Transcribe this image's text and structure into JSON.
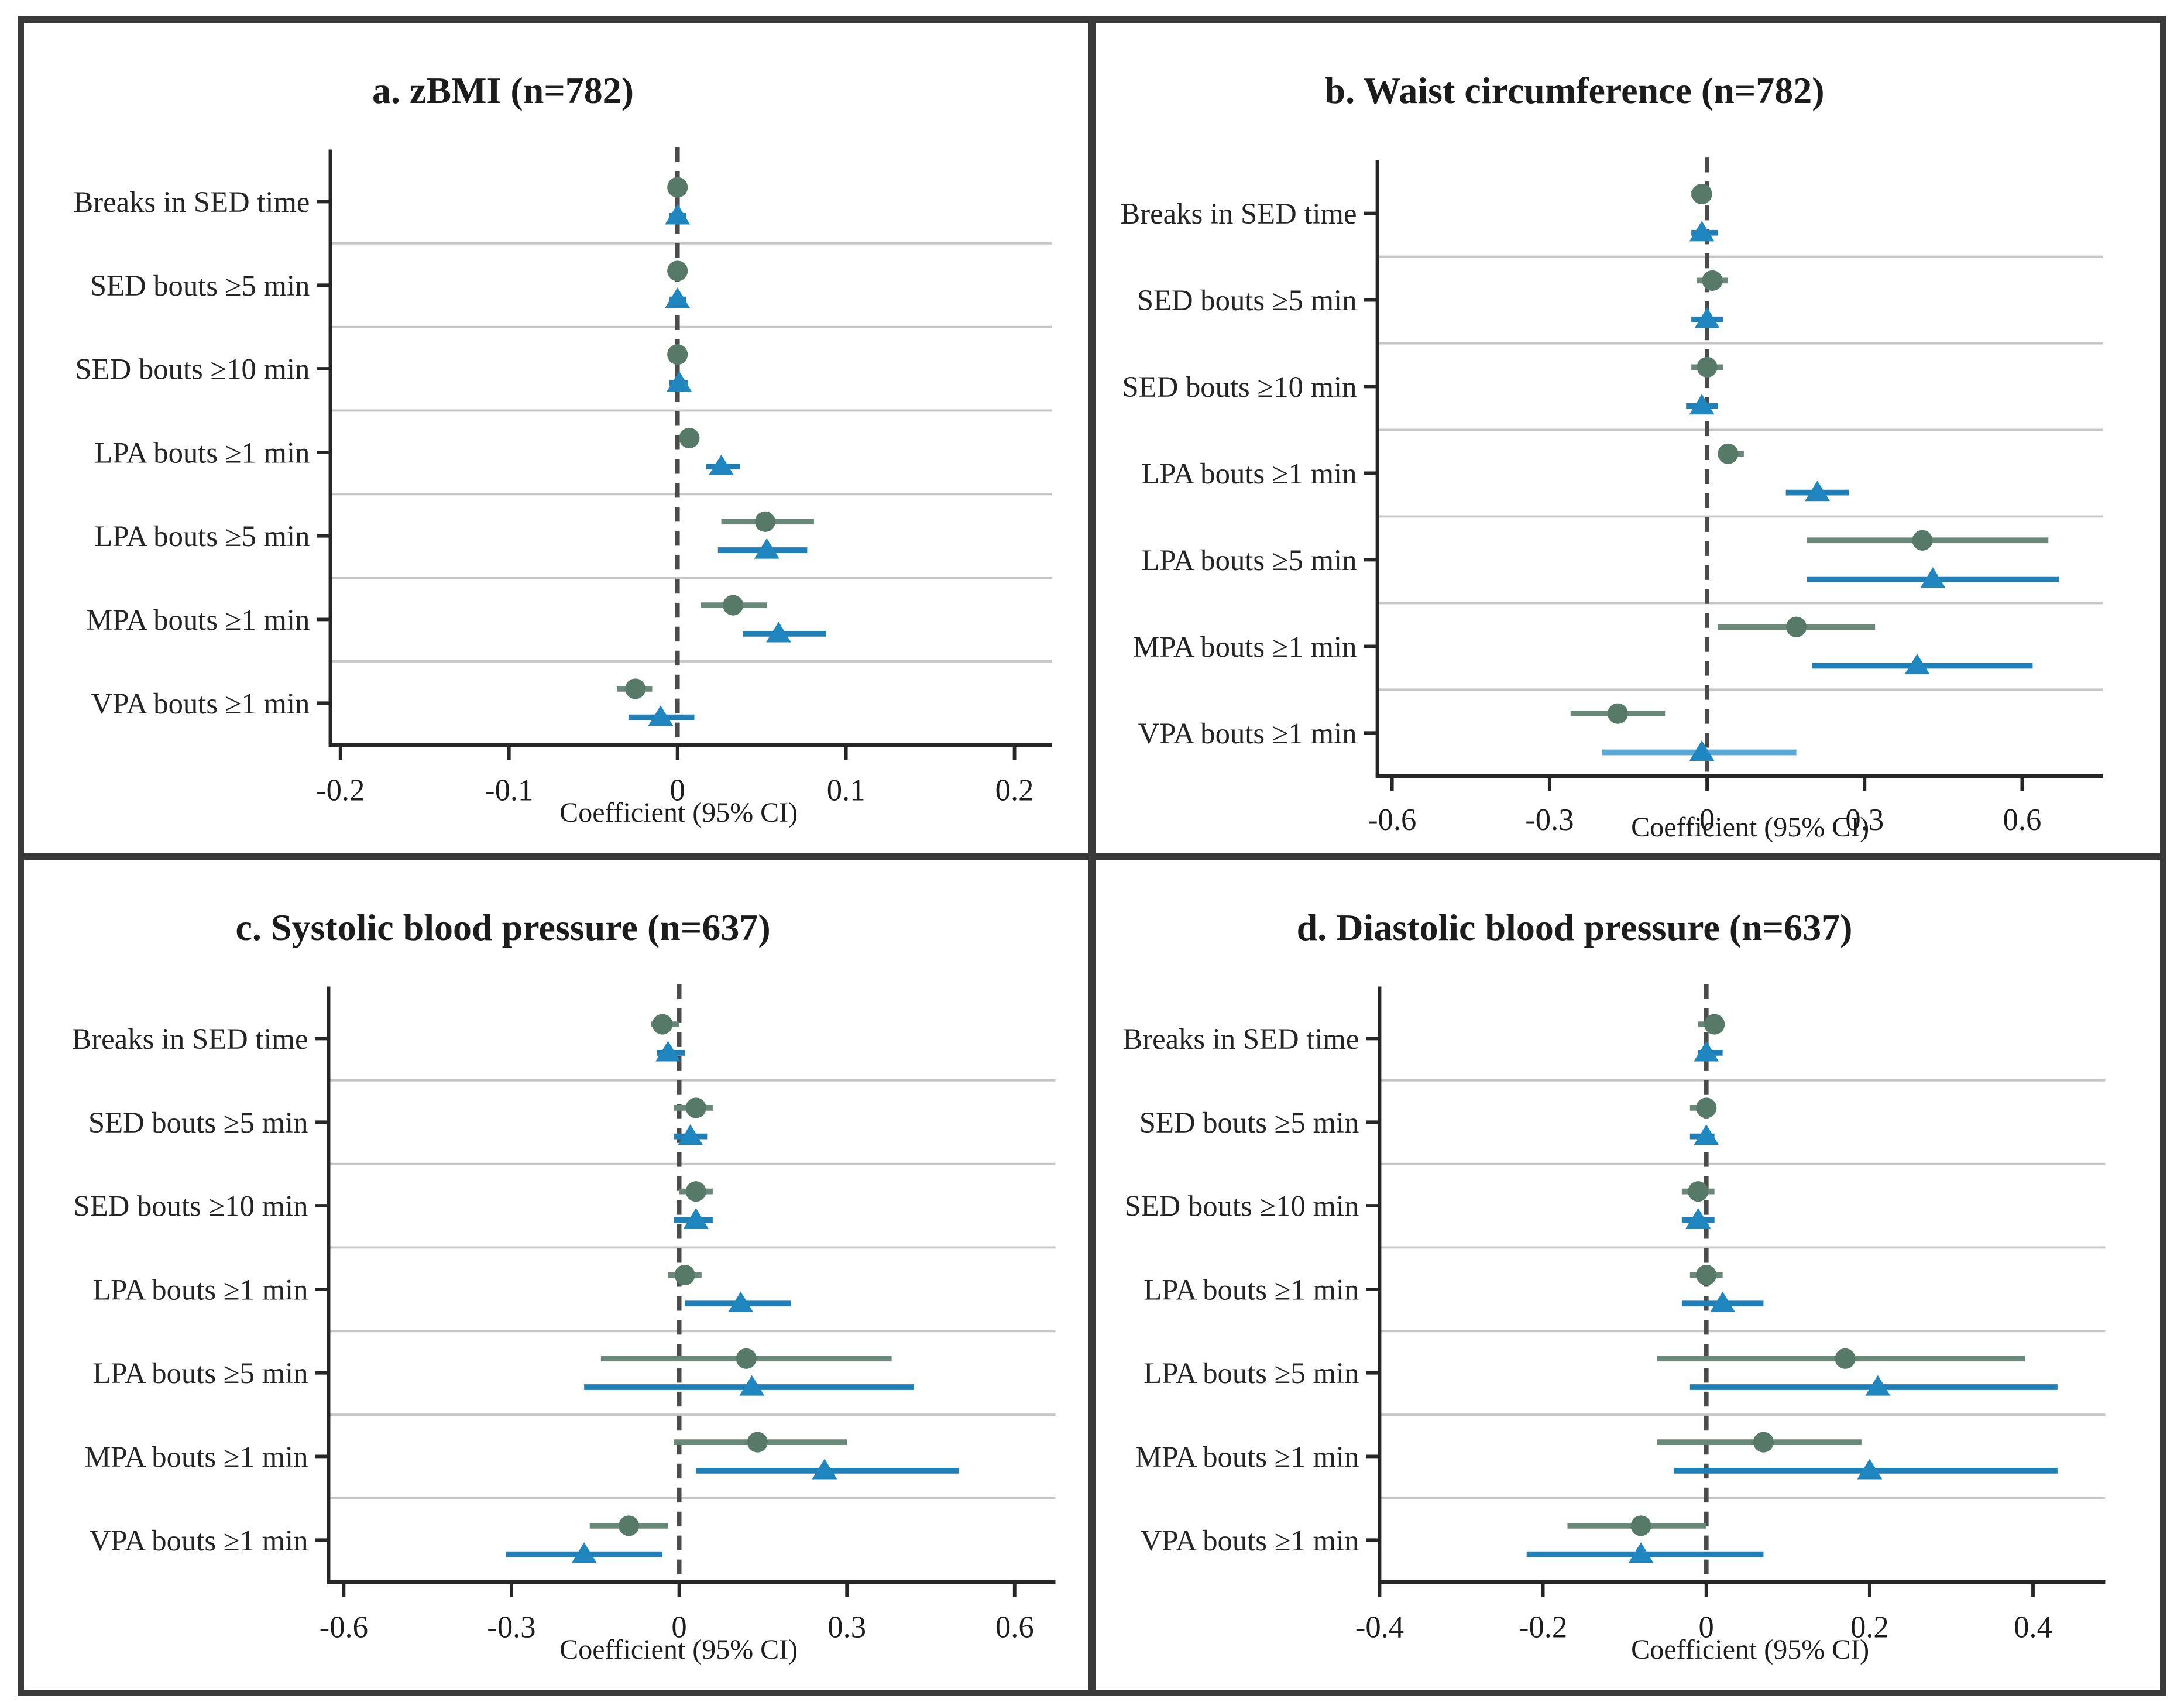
{
  "figure": {
    "frame_color": "#3a3a3a",
    "background": "#ffffff",
    "row_divider_color": "#c7c7c7",
    "axis_color": "#262626",
    "zero_line_color": "#4b4b4b",
    "text_color": "#1d1d1d"
  },
  "chart_data": {
    "type": "scatter",
    "subtype": "forest-plot-coefficients-95CI",
    "grid": "row-dividers-only",
    "legend": "none",
    "categories": [
      "Breaks in SED time",
      "SED bouts ≥5 min",
      "SED bouts ≥10 min",
      "LPA bouts ≥1 min",
      "LPA bouts ≥5 min",
      "MPA bouts ≥1 min",
      "VPA bouts ≥1 min"
    ],
    "series_meta": [
      {
        "name": "model-circle",
        "marker": "circle",
        "marker_color": "#567968",
        "line_color": "#6a8879"
      },
      {
        "name": "model-triangle",
        "marker": "triangle",
        "marker_color": "#1f86c0",
        "line_color": "#1f7fb6"
      }
    ],
    "panels": [
      {
        "id": "a",
        "title": "a. zBMI (n=782)",
        "xlabel": "Coefficient (95% CI)",
        "xlim": [
          -0.206,
          0.207
        ],
        "tick_values": [
          -0.2,
          -0.1,
          0,
          0.1,
          0.2
        ],
        "tick_labels": [
          "-0.2",
          "-0.1",
          "0",
          "0.1",
          "0.2"
        ],
        "series": [
          {
            "points": [
              {
                "est": 0.0,
                "lo": -0.005,
                "hi": 0.005
              },
              {
                "est": 0.0,
                "lo": -0.005,
                "hi": 0.005
              },
              {
                "est": 0.0,
                "lo": -0.005,
                "hi": 0.005
              },
              {
                "est": 0.007,
                "lo": 0.001,
                "hi": 0.013
              },
              {
                "est": 0.052,
                "lo": 0.026,
                "hi": 0.081
              },
              {
                "est": 0.033,
                "lo": 0.014,
                "hi": 0.053
              },
              {
                "est": -0.025,
                "lo": -0.036,
                "hi": -0.015
              }
            ]
          },
          {
            "points": [
              {
                "est": 0.0,
                "lo": -0.005,
                "hi": 0.005
              },
              {
                "est": 0.0,
                "lo": -0.005,
                "hi": 0.005
              },
              {
                "est": 0.001,
                "lo": -0.005,
                "hi": 0.006
              },
              {
                "est": 0.026,
                "lo": 0.017,
                "hi": 0.037
              },
              {
                "est": 0.053,
                "lo": 0.024,
                "hi": 0.077
              },
              {
                "est": 0.06,
                "lo": 0.039,
                "hi": 0.088
              },
              {
                "est": -0.01,
                "lo": -0.029,
                "hi": 0.01
              }
            ]
          }
        ]
      },
      {
        "id": "b",
        "title": "b. Waist circumference (n=782)",
        "xlabel": "Coefficient (95% CI)",
        "xlim": [
          -0.628,
          0.705
        ],
        "tick_values": [
          -0.6,
          -0.3,
          0,
          0.3,
          0.6
        ],
        "tick_labels": [
          "-0.6",
          "-0.3",
          "0",
          "0.3",
          "0.6"
        ],
        "series": [
          {
            "points": [
              {
                "est": -0.01,
                "lo": -0.03,
                "hi": 0.01
              },
              {
                "est": 0.01,
                "lo": -0.02,
                "hi": 0.04
              },
              {
                "est": 0.0,
                "lo": -0.03,
                "hi": 0.03
              },
              {
                "est": 0.04,
                "lo": 0.02,
                "hi": 0.07
              },
              {
                "est": 0.41,
                "lo": 0.19,
                "hi": 0.65
              },
              {
                "est": 0.17,
                "lo": 0.02,
                "hi": 0.32
              },
              {
                "est": -0.17,
                "lo": -0.26,
                "hi": -0.08
              }
            ]
          },
          {
            "points": [
              {
                "est": -0.01,
                "lo": -0.03,
                "hi": 0.02
              },
              {
                "est": 0.0,
                "lo": -0.03,
                "hi": 0.03
              },
              {
                "est": -0.01,
                "lo": -0.04,
                "hi": 0.02
              },
              {
                "est": 0.21,
                "lo": 0.15,
                "hi": 0.27
              },
              {
                "est": 0.43,
                "lo": 0.19,
                "hi": 0.67
              },
              {
                "est": 0.4,
                "lo": 0.2,
                "hi": 0.62
              },
              {
                "est": -0.01,
                "lo": -0.2,
                "hi": 0.17,
                "line_color": "#59a9d8"
              }
            ]
          }
        ]
      },
      {
        "id": "c",
        "title": "c. Systolic blood pressure (n=637)",
        "xlabel": "Coefficient (95% CI)",
        "xlim": [
          -0.627,
          0.627
        ],
        "tick_values": [
          -0.6,
          -0.3,
          0,
          0.3,
          0.6
        ],
        "tick_labels": [
          "-0.6",
          "-0.3",
          "0",
          "0.3",
          "0.6"
        ],
        "series": [
          {
            "points": [
              {
                "est": -0.03,
                "lo": -0.05,
                "hi": 0.0
              },
              {
                "est": 0.03,
                "lo": -0.01,
                "hi": 0.06
              },
              {
                "est": 0.03,
                "lo": 0.0,
                "hi": 0.06
              },
              {
                "est": 0.01,
                "lo": -0.02,
                "hi": 0.04
              },
              {
                "est": 0.12,
                "lo": -0.14,
                "hi": 0.38
              },
              {
                "est": 0.14,
                "lo": -0.01,
                "hi": 0.3
              },
              {
                "est": -0.09,
                "lo": -0.16,
                "hi": -0.02
              }
            ]
          },
          {
            "points": [
              {
                "est": -0.02,
                "lo": -0.04,
                "hi": 0.01
              },
              {
                "est": 0.02,
                "lo": -0.01,
                "hi": 0.05
              },
              {
                "est": 0.03,
                "lo": -0.01,
                "hi": 0.06
              },
              {
                "est": 0.11,
                "lo": 0.01,
                "hi": 0.2
              },
              {
                "est": 0.13,
                "lo": -0.17,
                "hi": 0.42
              },
              {
                "est": 0.26,
                "lo": 0.03,
                "hi": 0.5
              },
              {
                "est": -0.17,
                "lo": -0.31,
                "hi": -0.03
              }
            ]
          }
        ]
      },
      {
        "id": "d",
        "title": "d. Diastolic blood pressure (n=637)",
        "xlabel": "Coefficient (95% CI)",
        "xlim": [
          -0.4,
          0.457
        ],
        "tick_values": [
          -0.4,
          -0.2,
          0,
          0.2,
          0.4
        ],
        "tick_labels": [
          "-0.4",
          "-0.2",
          "0",
          "0.2",
          "0.4"
        ],
        "series": [
          {
            "points": [
              {
                "est": 0.01,
                "lo": -0.01,
                "hi": 0.02
              },
              {
                "est": 0.0,
                "lo": -0.02,
                "hi": 0.01
              },
              {
                "est": -0.01,
                "lo": -0.03,
                "hi": 0.01
              },
              {
                "est": 0.0,
                "lo": -0.02,
                "hi": 0.02
              },
              {
                "est": 0.17,
                "lo": -0.06,
                "hi": 0.39
              },
              {
                "est": 0.07,
                "lo": -0.06,
                "hi": 0.19
              },
              {
                "est": -0.08,
                "lo": -0.17,
                "hi": 0.0
              }
            ]
          },
          {
            "points": [
              {
                "est": 0.0,
                "lo": -0.01,
                "hi": 0.02
              },
              {
                "est": 0.0,
                "lo": -0.02,
                "hi": 0.01
              },
              {
                "est": -0.01,
                "lo": -0.03,
                "hi": 0.01
              },
              {
                "est": 0.02,
                "lo": -0.03,
                "hi": 0.07
              },
              {
                "est": 0.21,
                "lo": -0.02,
                "hi": 0.43
              },
              {
                "est": 0.2,
                "lo": -0.04,
                "hi": 0.43
              },
              {
                "est": -0.08,
                "lo": -0.22,
                "hi": 0.07
              }
            ]
          }
        ]
      }
    ]
  }
}
